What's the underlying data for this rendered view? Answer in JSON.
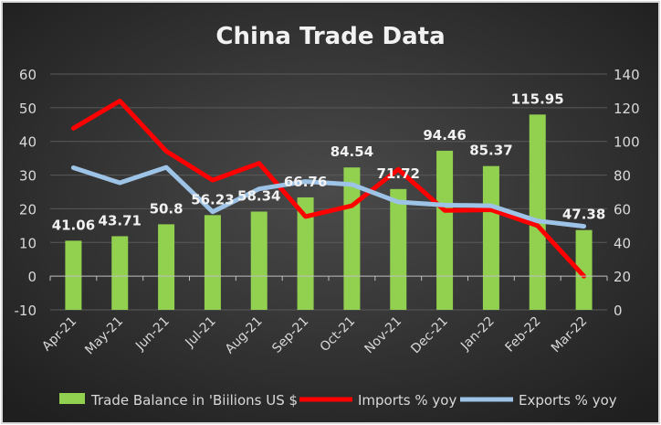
{
  "chart_data": {
    "type": "bar+line",
    "title": "China Trade Data",
    "categories": [
      "Apr-21",
      "May-21",
      "Jun-21",
      "Jul-21",
      "Aug-21",
      "Sep-21",
      "Oct-21",
      "Nov-21",
      "Dec-21",
      "Jan-22",
      "Feb-22",
      "Mar-22"
    ],
    "left_axis": {
      "range": [
        -10,
        60
      ],
      "ticks": [
        -10,
        0,
        10,
        20,
        30,
        40,
        50,
        60
      ]
    },
    "right_axis": {
      "range": [
        0,
        140
      ],
      "ticks": [
        0,
        20,
        40,
        60,
        80,
        100,
        120,
        140
      ]
    },
    "grid": true,
    "legend_position": "bottom",
    "series": [
      {
        "name": "Trade Balance in 'Biilions US $",
        "type": "bar",
        "axis": "right",
        "color": "#92d050",
        "values": [
          41.06,
          43.71,
          50.8,
          56.23,
          58.34,
          66.76,
          84.54,
          71.72,
          94.46,
          85.37,
          115.95,
          47.38
        ],
        "labels": [
          "41.06",
          "43.71",
          "50.8",
          "56.23",
          "58.34",
          "66.76",
          "84.54",
          "71.72",
          "94.46",
          "85.37",
          "115.95",
          "47.38"
        ]
      },
      {
        "name": "Imports % yoy",
        "type": "line",
        "axis": "left",
        "color": "#ff0000",
        "values": [
          43.9,
          52,
          37.1,
          28.5,
          33.5,
          17.7,
          20.9,
          31.7,
          19.5,
          19.7,
          15,
          0
        ]
      },
      {
        "name": "Exports % yoy",
        "type": "line",
        "axis": "left",
        "color": "#9dc3e6",
        "values": [
          32.2,
          27.7,
          32.3,
          19.1,
          25.9,
          28.1,
          27.2,
          22,
          21.1,
          20.9,
          16.4,
          14.8
        ]
      }
    ]
  }
}
